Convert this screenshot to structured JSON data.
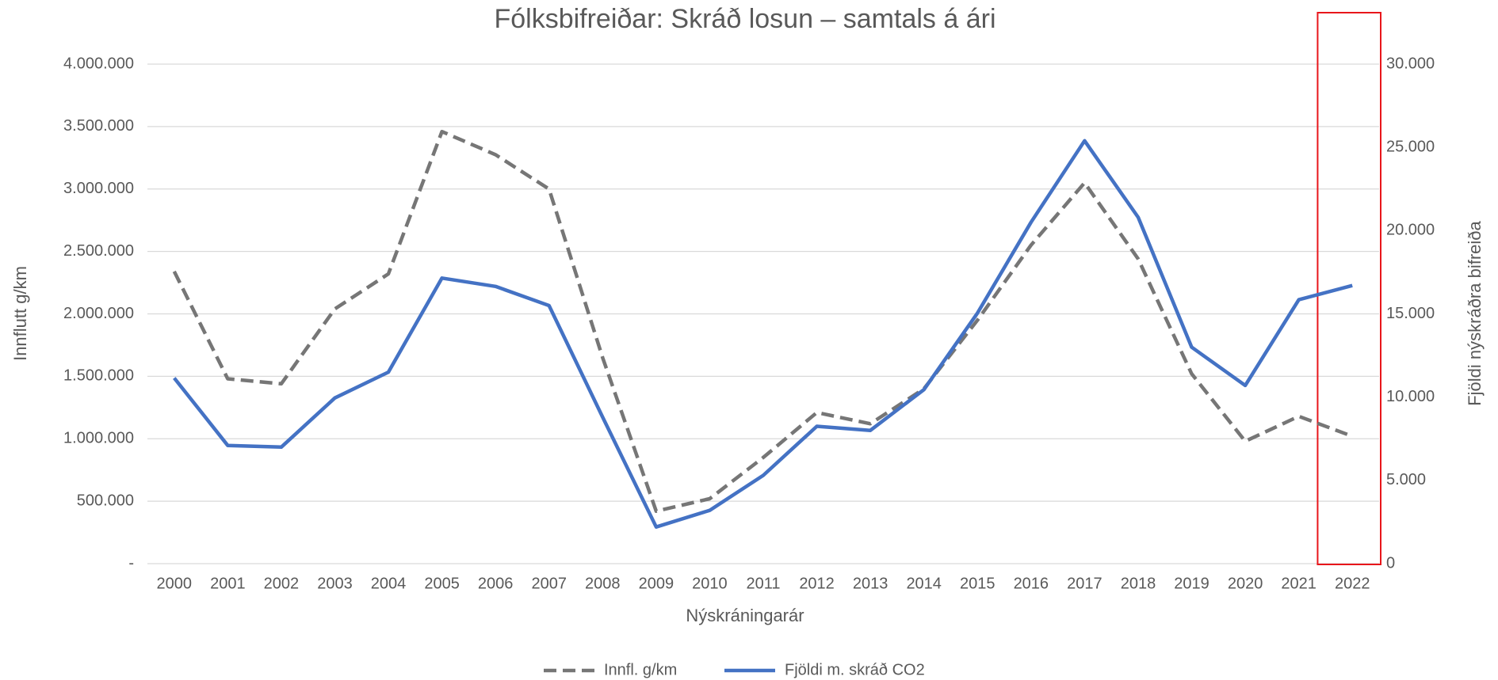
{
  "chart_data": {
    "type": "line",
    "title": "Fólksbifreiðar: Skráð losun – samtals á ári",
    "x_label": "Nýskráningarár",
    "y_label": "Innflutt g/km",
    "y2_label": "Fjöldi nýskráðra bifreiða",
    "categories": [
      "2000",
      "2001",
      "2002",
      "2003",
      "2004",
      "2005",
      "2006",
      "2007",
      "2008",
      "2009",
      "2010",
      "2011",
      "2012",
      "2013",
      "2014",
      "2015",
      "2016",
      "2017",
      "2018",
      "2019",
      "2020",
      "2021",
      "2022"
    ],
    "series": [
      {
        "name": "Innfl. g/km",
        "color": "#767676",
        "dash": true,
        "axis": "y",
        "values": [
          2340000,
          1480000,
          1440000,
          2040000,
          2320000,
          3460000,
          3275000,
          3000000,
          1650000,
          420000,
          520000,
          850000,
          1210000,
          1120000,
          1400000,
          1950000,
          2550000,
          3050000,
          2440000,
          1520000,
          980000,
          1180000,
          1020000
        ]
      },
      {
        "name": "Fjöldi m. skráð CO2",
        "color": "#4472c4",
        "dash": false,
        "axis": "y2",
        "values": [
          11150,
          7100,
          7000,
          9950,
          11500,
          17150,
          16650,
          15500,
          8800,
          2200,
          3200,
          5300,
          8250,
          8000,
          10450,
          15050,
          20500,
          25400,
          20800,
          13000,
          10700,
          15850,
          16700
        ]
      }
    ],
    "ylim": [
      0,
      4000000
    ],
    "yticks": [
      {
        "value": 0,
        "label": "-"
      },
      {
        "value": 500000,
        "label": "500.000"
      },
      {
        "value": 1000000,
        "label": "1.000.000"
      },
      {
        "value": 1500000,
        "label": "1.500.000"
      },
      {
        "value": 2000000,
        "label": "2.000.000"
      },
      {
        "value": 2500000,
        "label": "2.500.000"
      },
      {
        "value": 3000000,
        "label": "3.000.000"
      },
      {
        "value": 3500000,
        "label": "3.500.000"
      },
      {
        "value": 4000000,
        "label": "4.000.000"
      }
    ],
    "y2lim": [
      0,
      30000
    ],
    "y2ticks": [
      0,
      {
        "value": 5000,
        "label": "5.000"
      },
      {
        "value": 10000,
        "label": "10.000"
      },
      {
        "value": 15000,
        "label": "15.000"
      },
      {
        "value": 20000,
        "label": "20.000"
      },
      {
        "value": 25000,
        "label": "25.000"
      },
      {
        "value": 30000,
        "label": "30.000"
      }
    ],
    "grid": true,
    "legend": "bottom",
    "highlight_color": "#e8161b"
  }
}
